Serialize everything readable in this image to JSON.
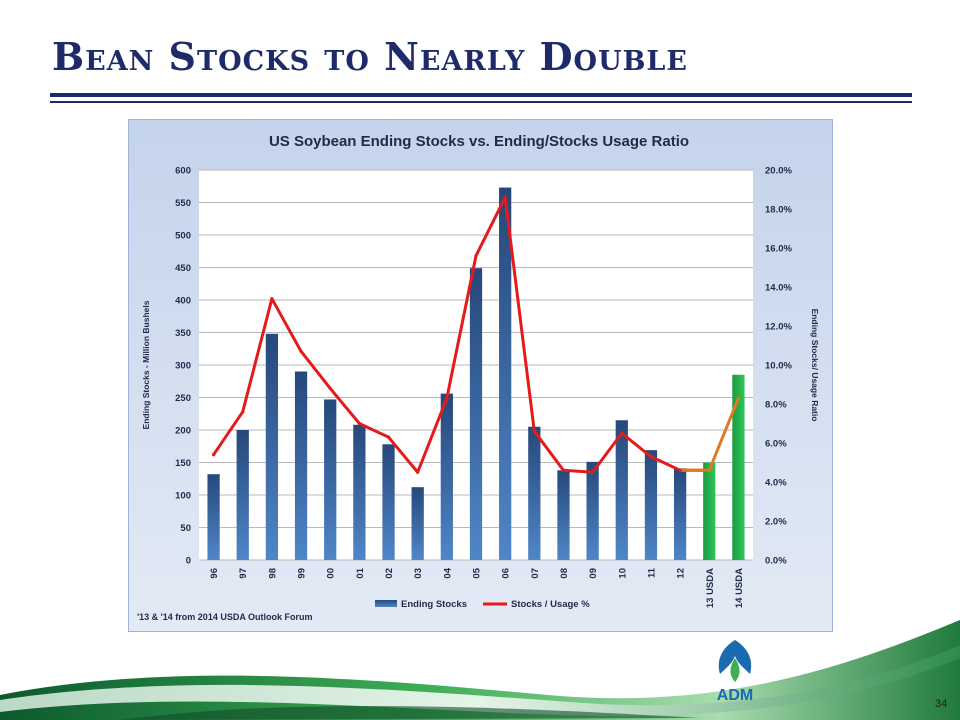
{
  "slide": {
    "title": "Bean Stocks to Nearly Double",
    "page_number": "34",
    "logo_text": "ADM"
  },
  "colors": {
    "title": "#1f2a6b",
    "bar_blue": "#2e5a95",
    "bar_green": "#22b14c",
    "line_red": "#e41b1b",
    "line_orange": "#e07a1f",
    "chart_bg": "#c9d7ec"
  },
  "chart_data": {
    "type": "bar",
    "title": "US Soybean Ending Stocks vs. Ending/Stocks Usage Ratio",
    "ylabel_left": "Ending Stocks - Million Bushels",
    "ylabel_right": "Ending Stocks/ Usage Ratio",
    "ylim_left": [
      0,
      600
    ],
    "ylim_right": [
      0,
      20
    ],
    "yticks_left": [
      "0",
      "50",
      "100",
      "150",
      "200",
      "250",
      "300",
      "350",
      "400",
      "450",
      "500",
      "550",
      "600"
    ],
    "yticks_right": [
      "0.0%",
      "2.0%",
      "4.0%",
      "6.0%",
      "8.0%",
      "10.0%",
      "12.0%",
      "14.0%",
      "16.0%",
      "18.0%",
      "20.0%"
    ],
    "categories": [
      "96",
      "97",
      "98",
      "99",
      "00",
      "01",
      "02",
      "03",
      "04",
      "05",
      "06",
      "07",
      "08",
      "09",
      "10",
      "11",
      "12",
      "13 USDA",
      "14 USDA"
    ],
    "series": [
      {
        "name": "Ending Stocks",
        "type": "bar",
        "values": [
          132,
          200,
          348,
          290,
          247,
          208,
          178,
          112,
          256,
          449,
          573,
          205,
          138,
          151,
          215,
          169,
          141,
          150,
          285
        ],
        "colors": [
          "blue",
          "blue",
          "blue",
          "blue",
          "blue",
          "blue",
          "blue",
          "blue",
          "blue",
          "blue",
          "blue",
          "blue",
          "blue",
          "blue",
          "blue",
          "blue",
          "blue",
          "green",
          "green"
        ]
      },
      {
        "name": "Stocks / Usage %",
        "type": "line",
        "axis": "right",
        "values": [
          5.4,
          7.6,
          13.4,
          10.7,
          8.8,
          7.0,
          6.3,
          4.5,
          8.3,
          15.6,
          18.6,
          6.6,
          4.6,
          4.5,
          6.5,
          5.3,
          4.6,
          4.6,
          8.3
        ]
      }
    ],
    "grid": true,
    "legend_position": "bottom",
    "footnote": "'13 & '14 from 2014 USDA Outlook Forum"
  }
}
